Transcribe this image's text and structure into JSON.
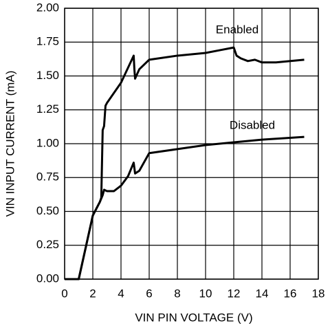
{
  "chart_data": {
    "type": "line",
    "xlabel": "VIN PIN VOLTAGE (V)",
    "ylabel": "VIN INPUT CURRENT (mA)",
    "xlim": [
      0,
      18
    ],
    "xticks": [
      0,
      2,
      4,
      6,
      8,
      10,
      12,
      14,
      16,
      18
    ],
    "ylim": [
      0,
      2
    ],
    "yticks": [
      {
        "value": 0,
        "label": "0.00"
      },
      {
        "value": 0.25,
        "label": "0.25"
      },
      {
        "value": 0.5,
        "label": "0.50"
      },
      {
        "value": 0.75,
        "label": "0.75"
      },
      {
        "value": 1,
        "label": "1.00"
      },
      {
        "value": 1.25,
        "label": "1.25"
      },
      {
        "value": 1.5,
        "label": "1.50"
      },
      {
        "value": 1.75,
        "label": "1.75"
      },
      {
        "value": 2,
        "label": "2.00"
      }
    ],
    "grid": true,
    "series": [
      {
        "name": "Enabled",
        "color": "#000000",
        "x": [
          0,
          1,
          2,
          2.5,
          2.6,
          2.7,
          2.8,
          2.9,
          3,
          4,
          4.9,
          4.95,
          5,
          5.3,
          6,
          8,
          10,
          11,
          12,
          12.2,
          12.5,
          13,
          13.5,
          14,
          15,
          17
        ],
        "values": [
          0,
          0,
          0.47,
          0.57,
          0.6,
          1.1,
          1.13,
          1.28,
          1.3,
          1.45,
          1.65,
          1.55,
          1.48,
          1.55,
          1.62,
          1.65,
          1.67,
          1.69,
          1.71,
          1.65,
          1.63,
          1.61,
          1.62,
          1.6,
          1.6,
          1.62
        ]
      },
      {
        "name": "Disabled",
        "color": "#000000",
        "x": [
          0,
          1,
          2,
          2.5,
          2.7,
          2.8,
          3,
          3.5,
          4,
          4.5,
          4.9,
          5,
          5.3,
          6,
          8,
          10,
          12,
          14,
          17
        ],
        "values": [
          0,
          0,
          0.47,
          0.57,
          0.62,
          0.66,
          0.65,
          0.65,
          0.69,
          0.76,
          0.86,
          0.78,
          0.8,
          0.93,
          0.96,
          0.99,
          1.01,
          1.03,
          1.05
        ]
      }
    ]
  }
}
